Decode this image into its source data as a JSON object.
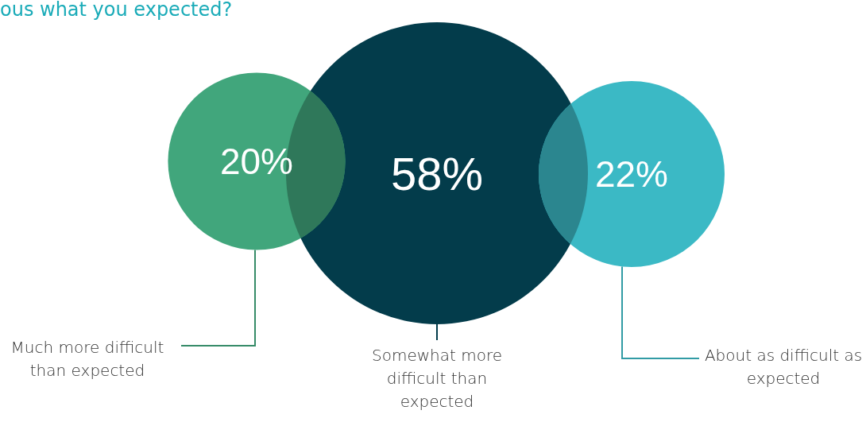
{
  "chart_data": {
    "type": "other",
    "title": "ous what you expected?",
    "categories": [
      "Much more difficult than expected",
      "Somewhat more difficult than expected",
      "About as difficult as expected"
    ],
    "values": [
      20,
      58,
      22
    ],
    "value_labels": [
      "20%",
      "58%",
      "22%"
    ],
    "colors": [
      "#41a67c",
      "#033c4b",
      "#3bb9c5"
    ]
  }
}
